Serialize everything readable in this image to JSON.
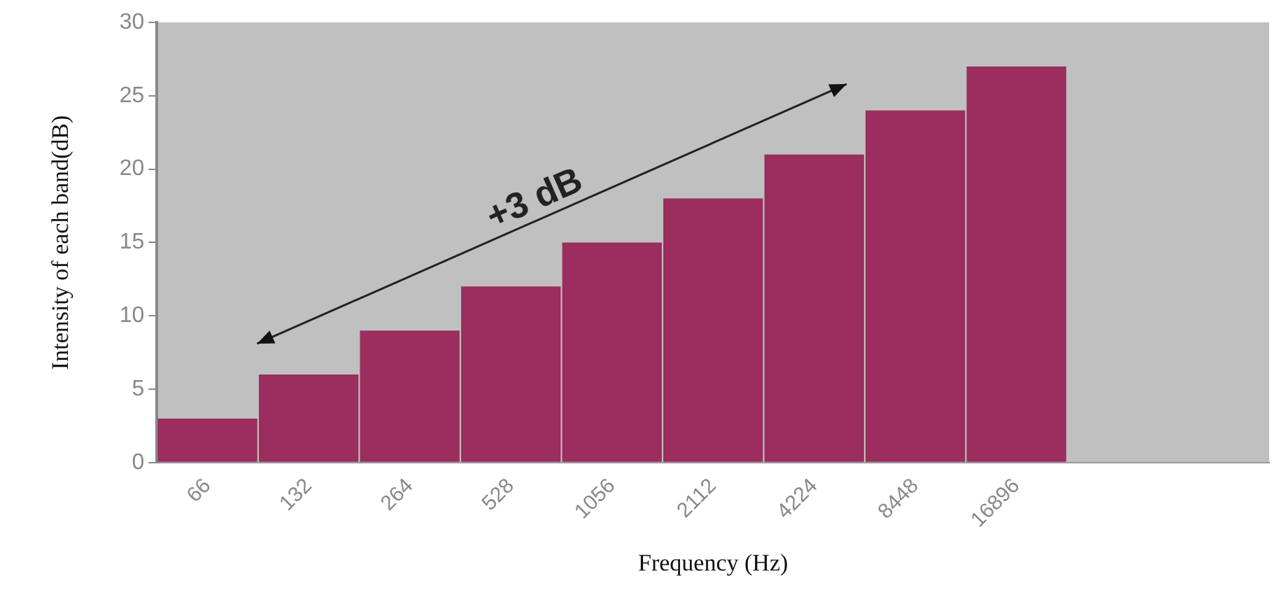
{
  "chart_data": {
    "type": "bar",
    "xlabel": "Frequency (Hz)",
    "ylabel": "Intensity of each band(dB)",
    "categories": [
      "66",
      "132",
      "264",
      "528",
      "1056",
      "2112",
      "4224",
      "8448",
      "16896",
      null,
      null
    ],
    "values": [
      3,
      6,
      9,
      12,
      15,
      18,
      21,
      24,
      27,
      null,
      null
    ],
    "color": "#9b2d5f",
    "ylim": [
      0,
      30
    ],
    "yticks": [
      0,
      5,
      10,
      15,
      20,
      25,
      30
    ],
    "grid": false,
    "legend": false,
    "annotations": [
      "+3 dB"
    ]
  }
}
